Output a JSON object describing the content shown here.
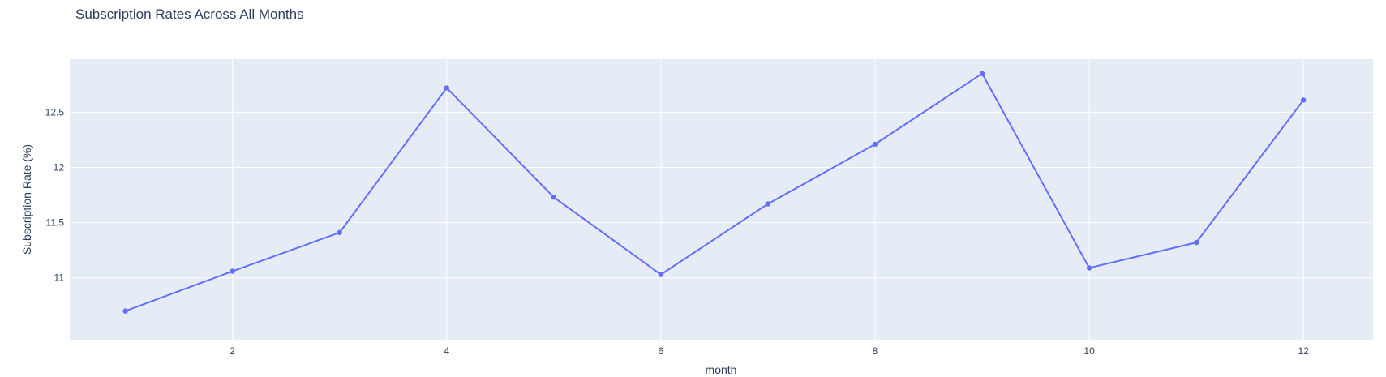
{
  "chart_data": {
    "type": "line",
    "title": "Subscription Rates Across All Months",
    "xlabel": "month",
    "ylabel": "Subscription Rate (%)",
    "x": [
      1,
      2,
      3,
      4,
      5,
      6,
      7,
      8,
      9,
      10,
      11,
      12
    ],
    "series": [
      {
        "values": [
          10.7,
          11.06,
          11.41,
          12.72,
          11.73,
          11.03,
          11.67,
          12.21,
          12.85,
          11.09,
          11.32,
          12.61
        ]
      }
    ],
    "xlim": [
      0.48,
      12.65
    ],
    "ylim": [
      10.44,
      12.98
    ],
    "xticks": [
      2,
      4,
      6,
      8,
      10,
      12
    ],
    "yticks": [
      11,
      11.5,
      12,
      12.5
    ],
    "xtick_labels": [
      "2",
      "4",
      "6",
      "8",
      "10",
      "12"
    ],
    "ytick_labels": [
      "11",
      "11.5",
      "12",
      "12.5"
    ],
    "grid": true,
    "colors": {
      "line": "#636efa",
      "plot_bg": "#e5ecf6",
      "grid": "#ffffff",
      "text": "#2a3f5f"
    }
  }
}
